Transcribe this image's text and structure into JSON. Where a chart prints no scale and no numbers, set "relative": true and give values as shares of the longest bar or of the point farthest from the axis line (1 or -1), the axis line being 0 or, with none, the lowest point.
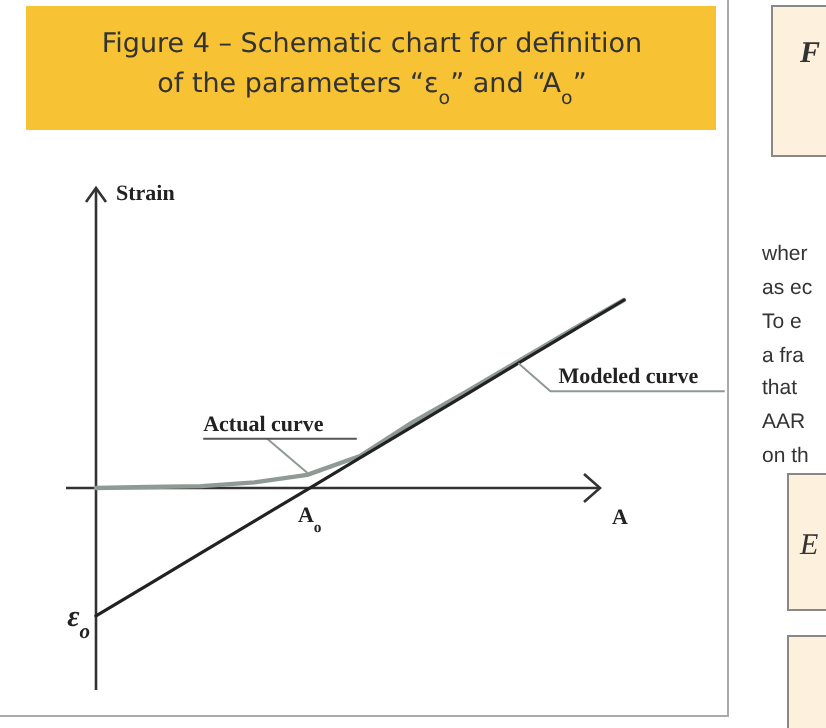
{
  "chart_data": {
    "type": "line",
    "title": "Figure 4 – Schematic chart for definition of the parameters “ε$_{o}$” and “A$_{o}$”",
    "xlabel": "A",
    "ylabel": "Strain",
    "relative": true,
    "categories": [
      null,
      null,
      null,
      null,
      null,
      null,
      null,
      null,
      null,
      null,
      null
    ],
    "series": [
      {
        "name": "Actual curve",
        "color": "#8f9a94",
        "values": [
          0,
          0.005,
          0.01,
          0.03,
          0.07,
          0.17,
          0.35,
          0.51,
          0.675,
          0.84,
          1
        ]
      },
      {
        "name": "Modeled curve",
        "color": "#222222",
        "values": [
          -0.68,
          -0.512,
          -0.344,
          -0.176,
          -0.008,
          0.16,
          0.328,
          0.496,
          0.664,
          0.832,
          1
        ]
      }
    ],
    "annotations": [
      "A$_{o}$",
      "ε$_{o}$",
      "F",
      "wher",
      "as ec",
      "To e",
      "a fra",
      "that",
      "AAR",
      "on th",
      "E"
    ]
  }
}
